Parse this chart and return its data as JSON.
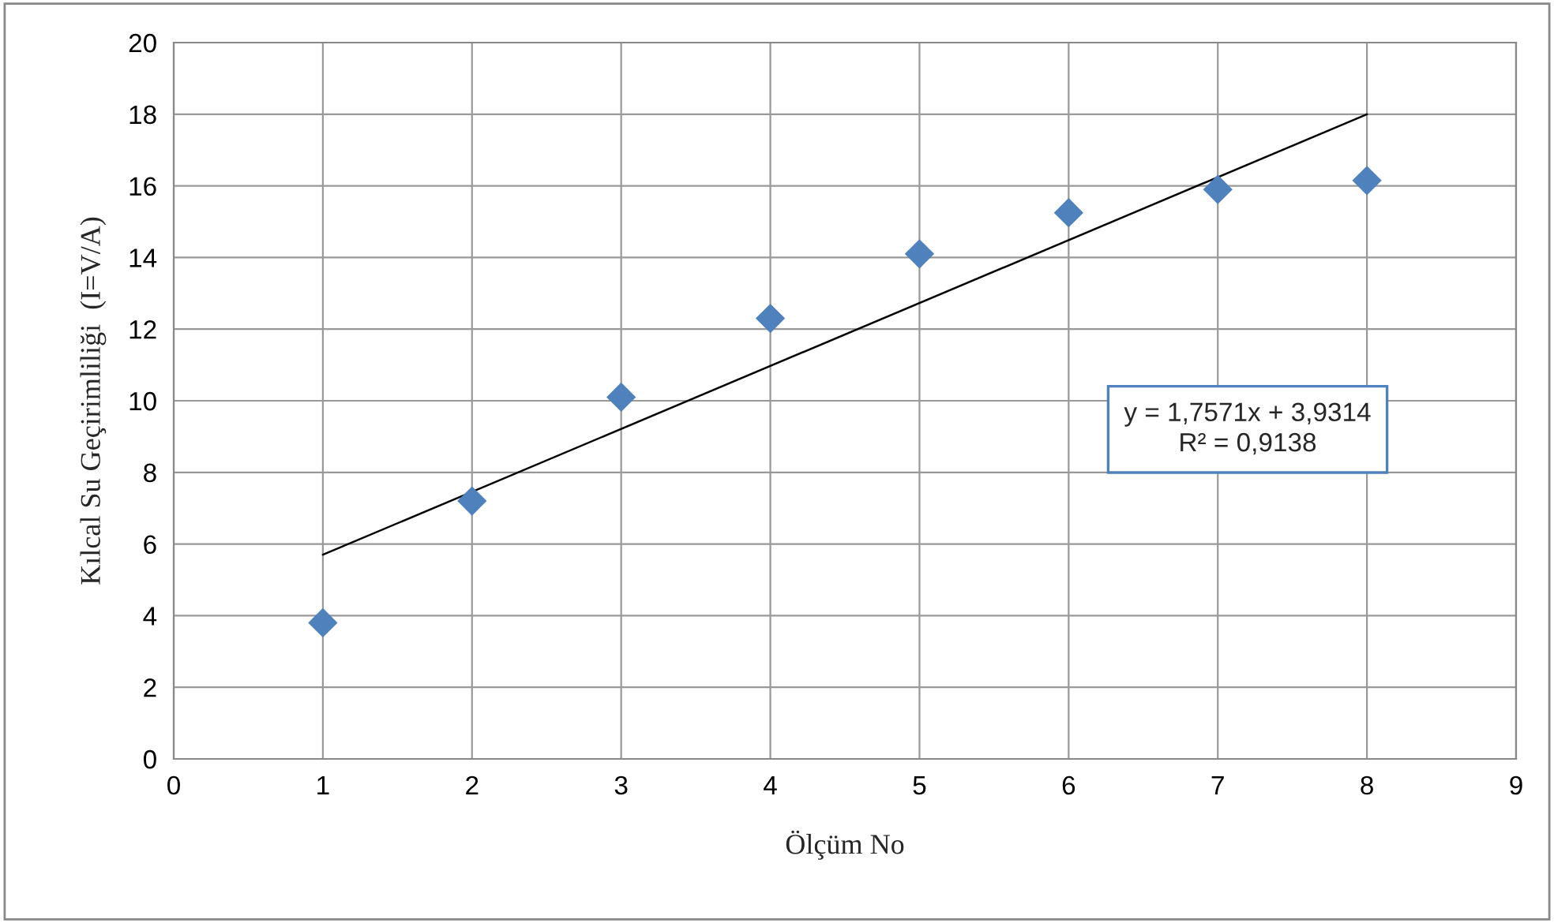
{
  "chart_data": {
    "type": "scatter",
    "xlabel": "Ölçüm No",
    "ylabel": "Kılcal Su Geçirimliliği  (I=V/A)",
    "x": [
      1,
      2,
      3,
      4,
      5,
      6,
      7,
      8
    ],
    "series": [
      {
        "color": "#4f81bd",
        "marker": "diamond",
        "values": [
          3.8,
          7.2,
          10.1,
          12.3,
          14.1,
          15.25,
          15.9,
          16.15
        ]
      },
      {
        "type": "line",
        "color": "#000000",
        "marker": "none",
        "line_style": "solid",
        "x": [
          1,
          8
        ],
        "values": [
          5.7,
          18.0
        ]
      }
    ],
    "annotations": [
      "y = 1,7571x + 3,9314\nR² = 0,9138"
    ],
    "xlim": [
      0,
      9
    ],
    "xticks": [
      0,
      1,
      2,
      3,
      4,
      5,
      6,
      7,
      8,
      9
    ],
    "ylim": [
      0,
      20
    ],
    "yticks": [
      0,
      2,
      4,
      6,
      8,
      10,
      12,
      14,
      16,
      18,
      20
    ],
    "grid": true
  }
}
